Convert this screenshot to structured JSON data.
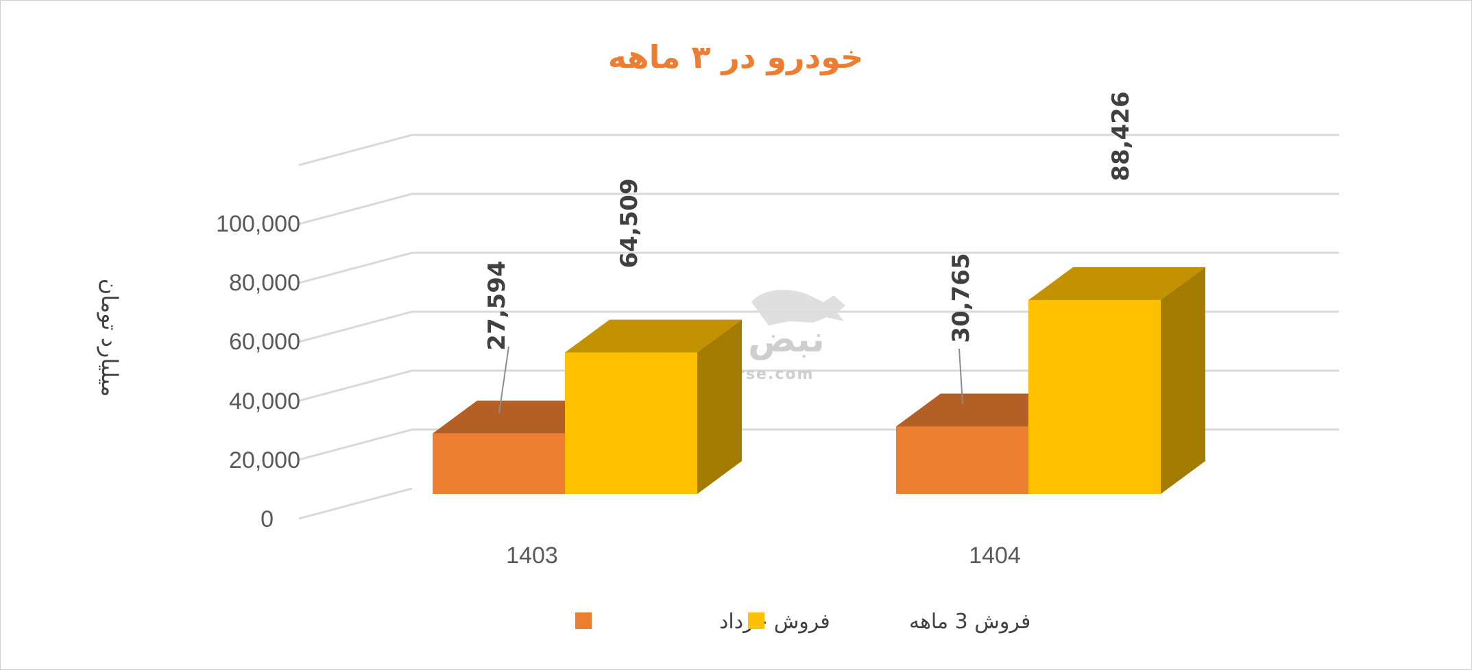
{
  "chart_data": {
    "type": "bar",
    "style": "3d-clustered-column",
    "title": "خودرو در ۳ ماهه",
    "ylabel": "میلیارد تومان",
    "xlabel": "",
    "categories": [
      "1403",
      "1404"
    ],
    "series": [
      {
        "name": "فروش خرداد",
        "values": [
          27594,
          30765
        ],
        "color": "#ed7d31"
      },
      {
        "name": "فروش 3  ماهه",
        "values": [
          64509,
          88426
        ],
        "color": "#ffc000"
      }
    ],
    "data_labels": [
      [
        "27,594",
        "30,765"
      ],
      [
        "64,509",
        "88,426"
      ]
    ],
    "yticks": [
      "0",
      "20,000",
      "40,000",
      "60,000",
      "80,000",
      "100,000"
    ],
    "ylim": [
      0,
      100000
    ],
    "grid": true,
    "legend": "bottom"
  },
  "watermark": {
    "brand": "نبض بورس",
    "url": "nabzebourse.com"
  }
}
